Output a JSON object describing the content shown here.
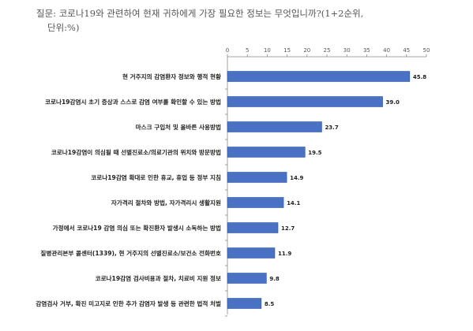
{
  "question": {
    "text": "질문: 코로나19와 관련하여 현재 귀하에게 가장 필요한 정보는 무엇입니까?(1+2순위,",
    "unit": "단위:%)"
  },
  "colors": {
    "bar": "#4a72c4",
    "bar_edge": "#2f56a6",
    "axis": "#888888"
  },
  "chart_data": {
    "type": "bar",
    "orientation": "horizontal",
    "xlim": [
      0,
      50
    ],
    "ticks": [
      0,
      5,
      10,
      15,
      20,
      25,
      30,
      35,
      40,
      45,
      50
    ],
    "grid": false,
    "categories": [
      "현 거주지의 감염환자 정보와 행적 현황",
      "코로나19감염시 초기 증상과 스스로 감염 여부를 확인할 수 있는 방법",
      "마스크 구입처 및 올바른 사용방법",
      "코로나19감염이 의심될 때 선별진료소/의료기관의 위치와 방문방법",
      "코로나19감염 확대로 인한 휴교, 휴업 등 정부 지침",
      "자가격리 절차와 방법, 자가격리시 생활지원",
      "가정에서 코로나19 감염 의심 또는 확진환자 발생시 소독하는 방법",
      "질병관리본부 콜센터(1339), 현 거주지의 선별진료소/보건소 전화번호",
      "코로나19감염 검사비용과 절차, 치료비 지원 정보",
      "감염검사 거부, 확진 미고지로 인한 추가 감염자 발생 등 관련한 법적 처벌"
    ],
    "values": [
      45.8,
      39.0,
      23.7,
      19.5,
      14.9,
      14.1,
      12.7,
      11.9,
      9.8,
      8.5
    ],
    "value_labels": [
      "45.8",
      "39.0",
      "23.7",
      "19.5",
      "14.9",
      "14.1",
      "12.7",
      "11.9",
      "9.8",
      "8.5"
    ]
  }
}
